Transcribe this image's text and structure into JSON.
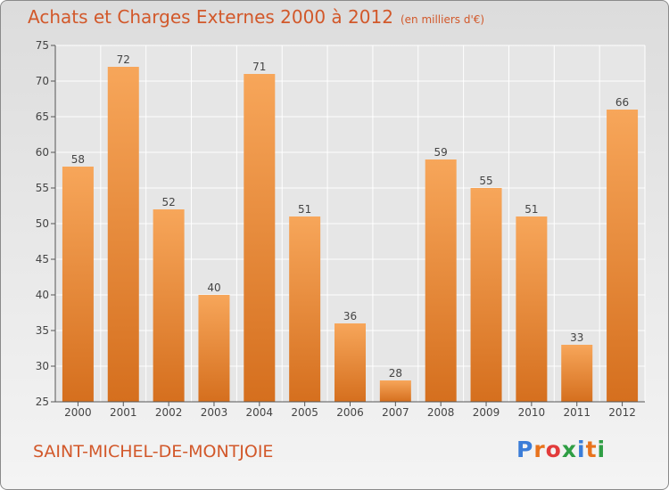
{
  "chart_data": {
    "type": "bar",
    "title": "Achats et Charges Externes 2000 à 2012",
    "subtitle": "(en milliers d'€)",
    "categories": [
      "2000",
      "2001",
      "2002",
      "2003",
      "2004",
      "2005",
      "2006",
      "2007",
      "2008",
      "2009",
      "2010",
      "2011",
      "2012"
    ],
    "values": [
      58,
      72,
      52,
      40,
      71,
      51,
      36,
      28,
      59,
      55,
      51,
      33,
      66
    ],
    "ylim": [
      25,
      75
    ],
    "yticks": [
      25,
      30,
      35,
      40,
      45,
      50,
      55,
      60,
      65,
      70,
      75
    ],
    "grid": true,
    "colors": {
      "bar_top": "#f7a65a",
      "bar_bottom": "#d56f1e",
      "grid": "#ffffff",
      "title": "#d2582a"
    }
  },
  "footer": {
    "commune": "SAINT-MICHEL-DE-MONTJOIE",
    "logo_letters": [
      "P",
      "r",
      "o",
      "x",
      "i",
      "t",
      "i"
    ],
    "logo_colors": [
      "#3b7dd8",
      "#e8731c",
      "#e23b3b",
      "#2f9e44",
      "#3b7dd8",
      "#e8731c",
      "#2f9e44"
    ]
  }
}
